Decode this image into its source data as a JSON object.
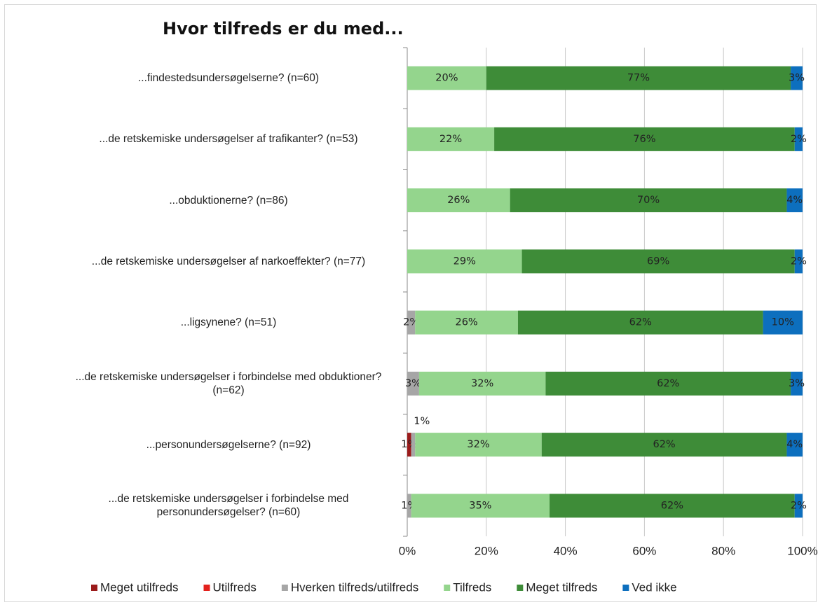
{
  "chart_data": {
    "type": "stacked-bar-horizontal",
    "title": "Hvor tilfreds er du med...",
    "categories": [
      "...findestedsundersøgelserne? (n=60)",
      "...de retskemiske undersøgelser af trafikanter? (n=53)",
      "...obduktionerne? (n=86)",
      "...de retskemiske undersøgelser af narkoeffekter? (n=77)",
      "...ligsynene? (n=51)",
      "...de retskemiske undersøgelser i forbindelse med obduktioner? (n=62)",
      "...personundersøgelserne? (n=92)",
      "...de retskemiske undersøgelser i forbindelse med personundersøgelser? (n=60)"
    ],
    "series": [
      {
        "name": "Meget utilfreds",
        "color": "#9b1b1b",
        "values": [
          null,
          null,
          null,
          null,
          null,
          null,
          1,
          null
        ],
        "value_labels": [
          null,
          null,
          null,
          null,
          null,
          null,
          "1%",
          null
        ]
      },
      {
        "name": "Utilfreds",
        "color": "#e3211c",
        "values": [
          null,
          null,
          null,
          null,
          null,
          null,
          null,
          null
        ],
        "value_labels": [
          null,
          null,
          null,
          null,
          null,
          null,
          null,
          null
        ]
      },
      {
        "name": "Hverken tilfreds/utilfreds",
        "color": "#a6a6a6",
        "values": [
          null,
          null,
          null,
          null,
          2,
          3,
          1,
          1
        ],
        "value_labels": [
          null,
          null,
          null,
          null,
          "2%",
          "3%",
          "1%",
          "1%"
        ]
      },
      {
        "name": "Tilfreds",
        "color": "#94d58d",
        "values": [
          20,
          22,
          26,
          29,
          26,
          32,
          32,
          35
        ],
        "value_labels": [
          "20%",
          "22%",
          "26%",
          "29%",
          "26%",
          "32%",
          "32%",
          "35%"
        ]
      },
      {
        "name": "Meget tilfreds",
        "color": "#3e8c38",
        "values": [
          77,
          76,
          70,
          69,
          62,
          62,
          62,
          62
        ],
        "value_labels": [
          "77%",
          "76%",
          "70%",
          "69%",
          "62%",
          "62%",
          "62%",
          "62%"
        ]
      },
      {
        "name": "Ved ikke",
        "color": "#0d6fbe",
        "values": [
          3,
          2,
          4,
          2,
          10,
          3,
          4,
          2
        ],
        "value_labels": [
          "3%",
          "2%",
          "4%",
          "2%",
          "10%",
          "3%",
          "4%",
          "2%"
        ]
      }
    ],
    "xlim": [
      0,
      100
    ],
    "xticks": [
      {
        "value": 0,
        "label": "0%"
      },
      {
        "value": 20,
        "label": "20%"
      },
      {
        "value": 40,
        "label": "40%"
      },
      {
        "value": 60,
        "label": "60%"
      },
      {
        "value": 80,
        "label": "80%"
      },
      {
        "value": 100,
        "label": "100%"
      }
    ],
    "grid": true,
    "legend": "bottom"
  }
}
